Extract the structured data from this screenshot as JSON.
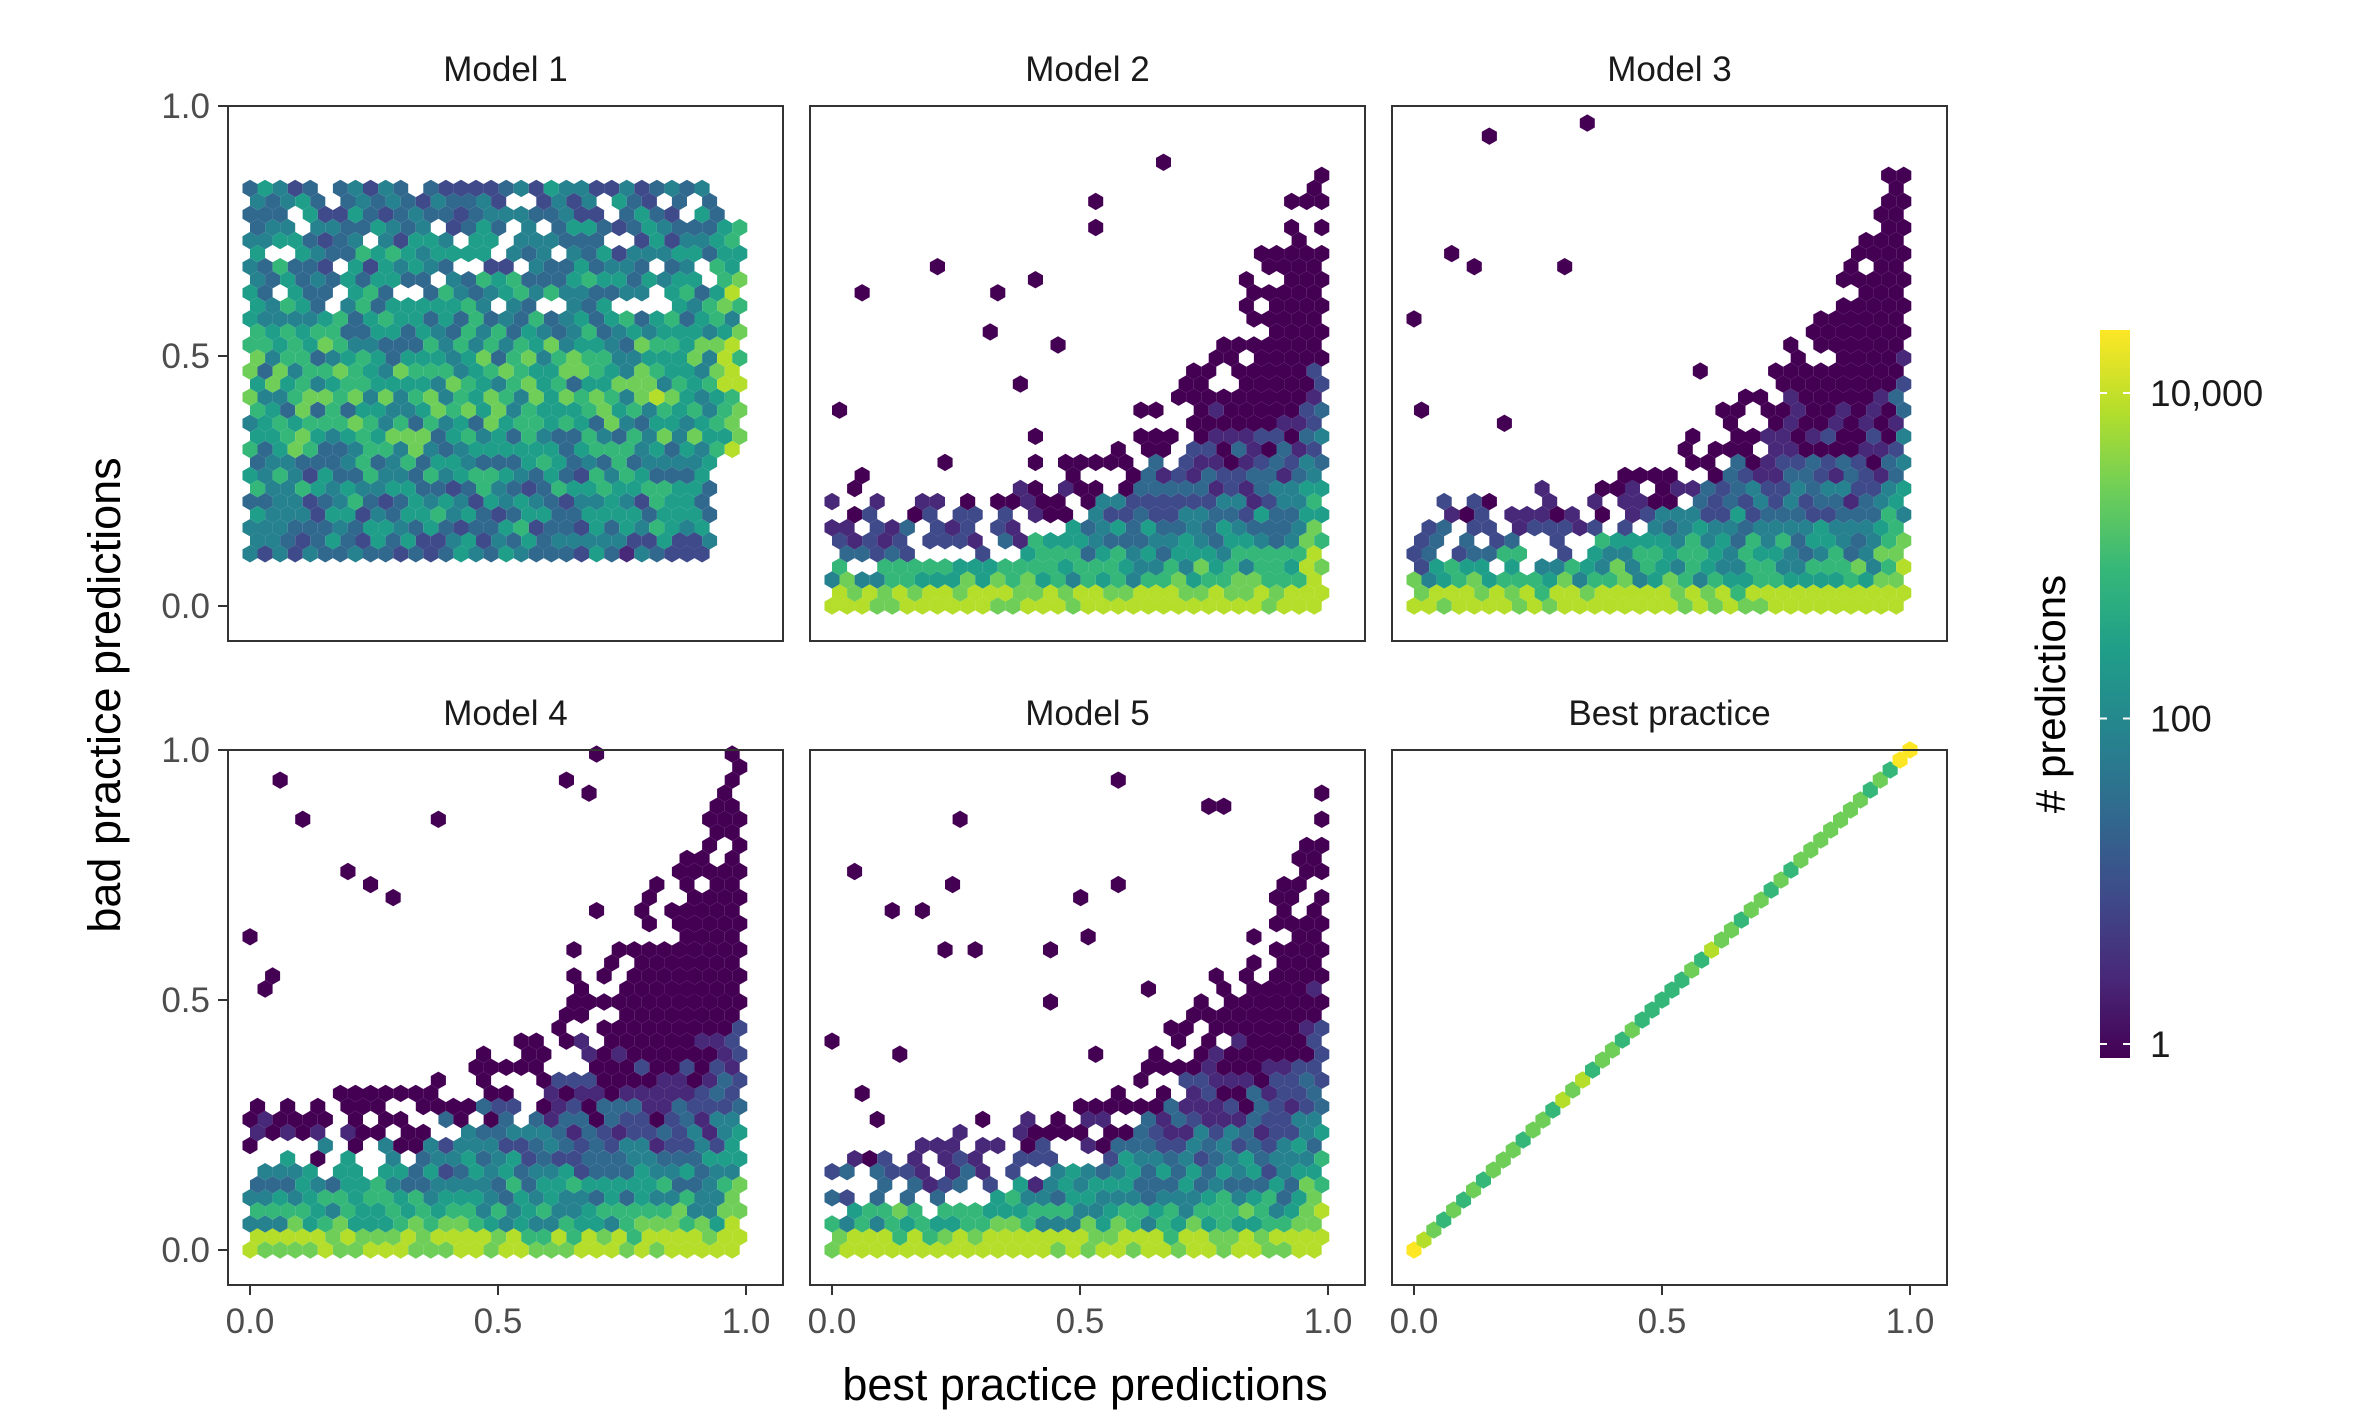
{
  "chart_data": {
    "type": "hexbin",
    "xlabel": "best practice predictions",
    "ylabel": "bad practice predictions",
    "xlim": [
      0,
      1
    ],
    "ylim": [
      0,
      1
    ],
    "x_ticks": [
      "0.0",
      "0.5",
      "1.0"
    ],
    "y_ticks": [
      "0.0",
      "0.5",
      "1.0"
    ],
    "grid": false,
    "legend": {
      "title": "# predictions",
      "placement": "right",
      "scale": "log10",
      "range": [
        1,
        20000
      ],
      "ticks": [
        {
          "value": 1,
          "label": "1"
        },
        {
          "value": 100,
          "label": "100"
        },
        {
          "value": 10000,
          "label": "10,000"
        }
      ],
      "colors": [
        "#440154",
        "#482878",
        "#3e4a89",
        "#31688e",
        "#26828e",
        "#1f9e89",
        "#35b779",
        "#6ece58",
        "#b5de2b",
        "#fde725"
      ]
    },
    "panels": [
      {
        "title": "Model 1",
        "pattern": "band",
        "y_range": [
          0.1,
          0.85
        ]
      },
      {
        "title": "Model 2",
        "pattern": "fan",
        "y_max": 0.92
      },
      {
        "title": "Model 3",
        "pattern": "fan",
        "y_max": 0.92
      },
      {
        "title": "Model 4",
        "pattern": "fan-wide",
        "y_max": 0.98
      },
      {
        "title": "Model 5",
        "pattern": "fan",
        "y_max": 0.98
      },
      {
        "title": "Best practice",
        "pattern": "diagonal",
        "relation": "y = x"
      }
    ]
  }
}
